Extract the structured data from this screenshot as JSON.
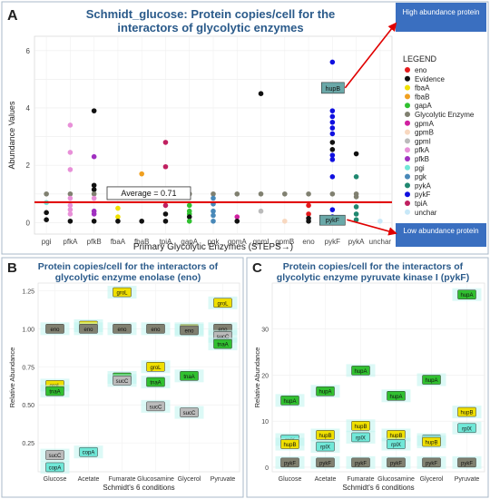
{
  "colors": {
    "eno": "#e41a1c",
    "Evidence": "#111111",
    "fbaA": "#f0e000",
    "fbaB": "#f0a020",
    "gapA": "#30c030",
    "Glycolytic Enzyme": "#808070",
    "gpmA": "#d020a0",
    "gpmB": "#f8d8c0",
    "gpmI": "#bbbbbb",
    "pfkA": "#e890d8",
    "pfkB": "#a030c0",
    "pgi": "#70e8d8",
    "pgk": "#4888b8",
    "pykA": "#208870",
    "pykF": "#1010e0",
    "tpiA": "#c02060",
    "unchar": "#c8e8f8",
    "accent": "#2a5a8a",
    "callout": "#3a6fc0",
    "average_line": "#e00000"
  },
  "panel_labels": {
    "a": "A",
    "b": "B",
    "c": "C"
  },
  "chart_data": [
    {
      "id": "A",
      "type": "scatter",
      "title": "Schmidt_glucose: Protein copies/cell for the interactors of glycolytic enzymes",
      "title_lines": [
        "Schmidt_glucose: Protein copies/cell for the",
        "interactors of glycolytic enzymes"
      ],
      "xlabel": "Primary Glycolytic Enzymes (STEPS→)",
      "ylabel": "Abundance Values",
      "ylim": [
        -0.4,
        6.5
      ],
      "yticks": [
        0,
        2,
        4,
        6
      ],
      "grid": true,
      "categories": [
        "pgi",
        "pfkA",
        "pfkB",
        "fbaA",
        "fbaB",
        "tpiA",
        "gapA",
        "pgk",
        "gpmA",
        "gpmI",
        "gpmB",
        "eno",
        "pykF",
        "pykA",
        "unchar"
      ],
      "average": {
        "value": 0.71,
        "label": "Average = 0.71"
      },
      "annotations": {
        "high": "High abundance protein",
        "low": "Low abundance protein",
        "hupB": "hupB",
        "pykF": "pykF"
      },
      "legend": {
        "title": "LEGEND",
        "position": "right",
        "entries": [
          "eno",
          "Evidence",
          "fbaA",
          "fbaB",
          "gapA",
          "Glycolytic Enzyme",
          "gpmA",
          "gpmB",
          "gpmI",
          "pfkA",
          "pfkB",
          "pgi",
          "pgk",
          "pykA",
          "pykF",
          "tpiA",
          "unchar"
        ]
      },
      "points": [
        {
          "x": "pgi",
          "y": 1.0,
          "s": "Glycolytic Enzyme"
        },
        {
          "x": "pgi",
          "y": 0.35,
          "s": "Evidence"
        },
        {
          "x": "pgi",
          "y": 0.7,
          "s": "pgi"
        },
        {
          "x": "pgi",
          "y": 0.1,
          "s": "Evidence"
        },
        {
          "x": "pfkA",
          "y": 3.4,
          "s": "pfkA"
        },
        {
          "x": "pfkA",
          "y": 2.45,
          "s": "pfkA"
        },
        {
          "x": "pfkA",
          "y": 1.85,
          "s": "pfkA"
        },
        {
          "x": "pfkA",
          "y": 1.0,
          "s": "Glycolytic Enzyme"
        },
        {
          "x": "pfkA",
          "y": 0.85,
          "s": "pfkA"
        },
        {
          "x": "pfkA",
          "y": 0.6,
          "s": "pfkA"
        },
        {
          "x": "pfkA",
          "y": 0.45,
          "s": "pfkA"
        },
        {
          "x": "pfkA",
          "y": 0.3,
          "s": "pfkA"
        },
        {
          "x": "pfkA",
          "y": 0.05,
          "s": "Evidence"
        },
        {
          "x": "pfkB",
          "y": 3.9,
          "s": "Evidence"
        },
        {
          "x": "pfkB",
          "y": 2.3,
          "s": "pfkB"
        },
        {
          "x": "pfkB",
          "y": 1.3,
          "s": "Evidence"
        },
        {
          "x": "pfkB",
          "y": 1.15,
          "s": "Evidence"
        },
        {
          "x": "pfkB",
          "y": 1.0,
          "s": "Glycolytic Enzyme"
        },
        {
          "x": "pfkB",
          "y": 0.85,
          "s": "pfkA"
        },
        {
          "x": "pfkB",
          "y": 0.4,
          "s": "pfkB"
        },
        {
          "x": "pfkB",
          "y": 0.3,
          "s": "pfkB"
        },
        {
          "x": "pfkB",
          "y": 0.05,
          "s": "Evidence"
        },
        {
          "x": "fbaA",
          "y": 1.0,
          "s": "Glycolytic Enzyme"
        },
        {
          "x": "fbaA",
          "y": 0.5,
          "s": "fbaA"
        },
        {
          "x": "fbaA",
          "y": 0.2,
          "s": "fbaA"
        },
        {
          "x": "fbaA",
          "y": 0.05,
          "s": "Evidence"
        },
        {
          "x": "fbaB",
          "y": 1.7,
          "s": "fbaB"
        },
        {
          "x": "fbaB",
          "y": 0.05,
          "s": "Evidence"
        },
        {
          "x": "tpiA",
          "y": 2.8,
          "s": "tpiA"
        },
        {
          "x": "tpiA",
          "y": 1.95,
          "s": "tpiA"
        },
        {
          "x": "tpiA",
          "y": 1.0,
          "s": "Glycolytic Enzyme"
        },
        {
          "x": "tpiA",
          "y": 0.6,
          "s": "tpiA"
        },
        {
          "x": "tpiA",
          "y": 0.3,
          "s": "Evidence"
        },
        {
          "x": "tpiA",
          "y": 0.05,
          "s": "Evidence"
        },
        {
          "x": "gapA",
          "y": 1.0,
          "s": "Glycolytic Enzyme"
        },
        {
          "x": "gapA",
          "y": 0.6,
          "s": "gapA"
        },
        {
          "x": "gapA",
          "y": 0.4,
          "s": "gapA"
        },
        {
          "x": "gapA",
          "y": 0.3,
          "s": "gapA"
        },
        {
          "x": "gapA",
          "y": 0.2,
          "s": "Evidence"
        },
        {
          "x": "gapA",
          "y": 0.05,
          "s": "gapA"
        },
        {
          "x": "pgk",
          "y": 1.0,
          "s": "Glycolytic Enzyme"
        },
        {
          "x": "pgk",
          "y": 0.85,
          "s": "pgk"
        },
        {
          "x": "pgk",
          "y": 0.65,
          "s": "pgk"
        },
        {
          "x": "pgk",
          "y": 0.4,
          "s": "pgk"
        },
        {
          "x": "pgk",
          "y": 0.25,
          "s": "pgk"
        },
        {
          "x": "pgk",
          "y": 0.05,
          "s": "pgk"
        },
        {
          "x": "gpmA",
          "y": 1.0,
          "s": "Glycolytic Enzyme"
        },
        {
          "x": "gpmA",
          "y": 0.2,
          "s": "gpmA"
        },
        {
          "x": "gpmA",
          "y": 0.05,
          "s": "Evidence"
        },
        {
          "x": "gpmI",
          "y": 4.5,
          "s": "Evidence"
        },
        {
          "x": "gpmI",
          "y": 1.0,
          "s": "Glycolytic Enzyme"
        },
        {
          "x": "gpmI",
          "y": 0.4,
          "s": "gpmI"
        },
        {
          "x": "gpmB",
          "y": 1.0,
          "s": "Glycolytic Enzyme"
        },
        {
          "x": "gpmB",
          "y": 0.05,
          "s": "gpmB"
        },
        {
          "x": "eno",
          "y": 1.0,
          "s": "Glycolytic Enzyme"
        },
        {
          "x": "eno",
          "y": 0.6,
          "s": "eno"
        },
        {
          "x": "eno",
          "y": 0.3,
          "s": "eno"
        },
        {
          "x": "eno",
          "y": 0.15,
          "s": "Evidence"
        },
        {
          "x": "eno",
          "y": 0.05,
          "s": "Evidence"
        },
        {
          "x": "pykF",
          "y": 5.6,
          "s": "pykF"
        },
        {
          "x": "pykF",
          "y": 3.9,
          "s": "pykF"
        },
        {
          "x": "pykF",
          "y": 3.7,
          "s": "pykF"
        },
        {
          "x": "pykF",
          "y": 3.5,
          "s": "pykF"
        },
        {
          "x": "pykF",
          "y": 3.3,
          "s": "pykF"
        },
        {
          "x": "pykF",
          "y": 3.1,
          "s": "pykF"
        },
        {
          "x": "pykF",
          "y": 2.8,
          "s": "Evidence"
        },
        {
          "x": "pykF",
          "y": 2.55,
          "s": "Evidence"
        },
        {
          "x": "pykF",
          "y": 2.35,
          "s": "pykF"
        },
        {
          "x": "pykF",
          "y": 2.2,
          "s": "pykF"
        },
        {
          "x": "pykF",
          "y": 1.6,
          "s": "pykF"
        },
        {
          "x": "pykF",
          "y": 1.0,
          "s": "Glycolytic Enzyme"
        },
        {
          "x": "pykF",
          "y": 0.45,
          "s": "pykF"
        },
        {
          "x": "pykF",
          "y": 0.2,
          "s": "pykF"
        },
        {
          "x": "pykF",
          "y": 0.05,
          "s": "Evidence"
        },
        {
          "x": "pykA",
          "y": 2.4,
          "s": "Evidence"
        },
        {
          "x": "pykA",
          "y": 1.6,
          "s": "pykA"
        },
        {
          "x": "pykA",
          "y": 1.0,
          "s": "Glycolytic Enzyme"
        },
        {
          "x": "pykA",
          "y": 0.9,
          "s": "Glycolytic Enzyme"
        },
        {
          "x": "pykA",
          "y": 0.55,
          "s": "pykA"
        },
        {
          "x": "pykA",
          "y": 0.3,
          "s": "pykA"
        },
        {
          "x": "pykA",
          "y": 0.1,
          "s": "pykA"
        },
        {
          "x": "unchar",
          "y": 0.05,
          "s": "unchar"
        }
      ]
    },
    {
      "id": "B",
      "type": "scatter",
      "title": "Protein copies/cell for the interactors of glycolytic enzyme enolase (eno)",
      "title_lines": [
        "Protein copies/cell for the interactors of",
        "glycolytic enzyme enolase (eno)"
      ],
      "xlabel": "Schmidt's 6 conditions",
      "ylabel": "Relative Abundance",
      "ylim": [
        0.06,
        1.3
      ],
      "yticks": [
        0.25,
        0.5,
        0.75,
        1.0,
        1.25
      ],
      "ytick_labels": [
        "0.25",
        "0.50",
        "0.75",
        "1.00",
        "1.25"
      ],
      "grid": true,
      "categories": [
        "Glucose",
        "Acetate",
        "Fumarate",
        "Glucosamine",
        "Glycerol",
        "Pyruvate"
      ],
      "points": [
        {
          "x": "Glucose",
          "y": 1.0,
          "label": "eno",
          "s": "Glycolytic Enzyme"
        },
        {
          "x": "Glucose",
          "y": 0.63,
          "label": "groL",
          "s": "fbaA"
        },
        {
          "x": "Glucose",
          "y": 0.59,
          "label": "tnaA",
          "s": "gapA"
        },
        {
          "x": "Glucose",
          "y": 0.17,
          "label": "sucC",
          "s": "gpmI"
        },
        {
          "x": "Glucose",
          "y": 0.09,
          "label": "copA",
          "s": "pgi"
        },
        {
          "x": "Acetate",
          "y": 1.02,
          "label": "groL",
          "s": "fbaA"
        },
        {
          "x": "Acetate",
          "y": 1.0,
          "label": "eno",
          "s": "Glycolytic Enzyme"
        },
        {
          "x": "Acetate",
          "y": 0.19,
          "label": "copA",
          "s": "pgi"
        },
        {
          "x": "Fumarate",
          "y": 1.24,
          "label": "groL",
          "s": "fbaA"
        },
        {
          "x": "Fumarate",
          "y": 1.0,
          "label": "eno",
          "s": "Glycolytic Enzyme"
        },
        {
          "x": "Fumarate",
          "y": 0.68,
          "label": "tnaA",
          "s": "gapA"
        },
        {
          "x": "Fumarate",
          "y": 0.66,
          "label": "sucC",
          "s": "gpmI"
        },
        {
          "x": "Glucosamine",
          "y": 1.0,
          "label": "eno",
          "s": "Glycolytic Enzyme"
        },
        {
          "x": "Glucosamine",
          "y": 0.75,
          "label": "groL",
          "s": "fbaA"
        },
        {
          "x": "Glucosamine",
          "y": 0.65,
          "label": "tnaA",
          "s": "gapA"
        },
        {
          "x": "Glucosamine",
          "y": 0.49,
          "label": "sucC",
          "s": "gpmI"
        },
        {
          "x": "Glycerol",
          "y": 1.0,
          "label": "groL",
          "s": "fbaA"
        },
        {
          "x": "Glycerol",
          "y": 0.99,
          "label": "eno",
          "s": "Glycolytic Enzyme"
        },
        {
          "x": "Glycerol",
          "y": 0.69,
          "label": "tnaA",
          "s": "gapA"
        },
        {
          "x": "Glycerol",
          "y": 0.45,
          "label": "sucC",
          "s": "gpmI"
        },
        {
          "x": "Pyruvate",
          "y": 1.17,
          "label": "groL",
          "s": "fbaA"
        },
        {
          "x": "Pyruvate",
          "y": 1.0,
          "label": "eno",
          "s": "Glycolytic Enzyme"
        },
        {
          "x": "Pyruvate",
          "y": 0.95,
          "label": "sucC",
          "s": "gpmI"
        },
        {
          "x": "Pyruvate",
          "y": 0.9,
          "label": "tnaA",
          "s": "gapA"
        }
      ]
    },
    {
      "id": "C",
      "type": "scatter",
      "title": "Protein copies/cell for the interactors of glycolytic enzyme pyruvate kinase I (pykF)",
      "title_lines": [
        "Protein copies/cell for the interactors of",
        "glycolytic enzyme pyruvate kinase I (pykF)"
      ],
      "xlabel": "Schmidt's 6 conditions",
      "ylabel": "Relative Abundance",
      "ylim": [
        -1,
        40
      ],
      "yticks": [
        0,
        10,
        20,
        30
      ],
      "ytick_labels": [
        "0",
        "10",
        "20",
        "30"
      ],
      "grid": true,
      "categories": [
        "Glucose",
        "Acetate",
        "Fumarate",
        "Glucosamine",
        "Glycerol",
        "Pyruvate"
      ],
      "points": [
        {
          "x": "Glucose",
          "y": 14.5,
          "label": "hupA",
          "s": "gapA"
        },
        {
          "x": "Glucose",
          "y": 6.0,
          "label": "rplX",
          "s": "pgi"
        },
        {
          "x": "Glucose",
          "y": 5.0,
          "label": "hupB",
          "s": "fbaA"
        },
        {
          "x": "Glucose",
          "y": 1.0,
          "label": "pykF",
          "s": "Glycolytic Enzyme"
        },
        {
          "x": "Acetate",
          "y": 16.5,
          "label": "hupA",
          "s": "gapA"
        },
        {
          "x": "Acetate",
          "y": 7.0,
          "label": "hupB",
          "s": "fbaA"
        },
        {
          "x": "Acetate",
          "y": 4.5,
          "label": "rplX",
          "s": "pgi"
        },
        {
          "x": "Acetate",
          "y": 1.0,
          "label": "pykF",
          "s": "Glycolytic Enzyme"
        },
        {
          "x": "Fumarate",
          "y": 21.0,
          "label": "hupA",
          "s": "gapA"
        },
        {
          "x": "Fumarate",
          "y": 9.0,
          "label": "hupB",
          "s": "fbaA"
        },
        {
          "x": "Fumarate",
          "y": 6.5,
          "label": "rplX",
          "s": "pgi"
        },
        {
          "x": "Fumarate",
          "y": 1.0,
          "label": "pykF",
          "s": "Glycolytic Enzyme"
        },
        {
          "x": "Glucosamine",
          "y": 15.5,
          "label": "hupA",
          "s": "gapA"
        },
        {
          "x": "Glucosamine",
          "y": 7.0,
          "label": "hupB",
          "s": "fbaA"
        },
        {
          "x": "Glucosamine",
          "y": 5.0,
          "label": "rplX",
          "s": "pgi"
        },
        {
          "x": "Glucosamine",
          "y": 1.0,
          "label": "pykF",
          "s": "Glycolytic Enzyme"
        },
        {
          "x": "Glycerol",
          "y": 19.0,
          "label": "hupA",
          "s": "gapA"
        },
        {
          "x": "Glycerol",
          "y": 6.0,
          "label": "rplX",
          "s": "pgi"
        },
        {
          "x": "Glycerol",
          "y": 5.5,
          "label": "hupB",
          "s": "fbaA"
        },
        {
          "x": "Glycerol",
          "y": 1.0,
          "label": "pykF",
          "s": "Glycolytic Enzyme"
        },
        {
          "x": "Pyruvate",
          "y": 37.5,
          "label": "hupA",
          "s": "gapA"
        },
        {
          "x": "Pyruvate",
          "y": 12.0,
          "label": "hupB",
          "s": "fbaA"
        },
        {
          "x": "Pyruvate",
          "y": 8.5,
          "label": "rplX",
          "s": "pgi"
        },
        {
          "x": "Pyruvate",
          "y": 1.0,
          "label": "pykF",
          "s": "Glycolytic Enzyme"
        }
      ]
    }
  ]
}
